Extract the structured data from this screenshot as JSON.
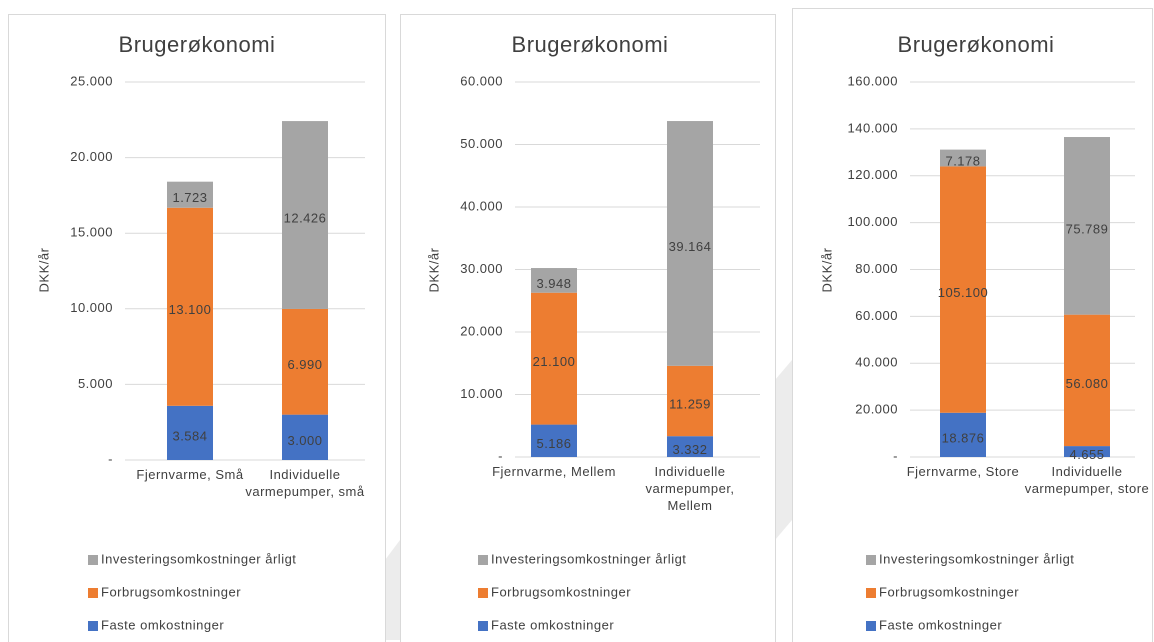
{
  "chart_data": [
    {
      "type": "stacked_bar",
      "title": "Brugerøkonomi",
      "y_label": "DKK/år",
      "categories": [
        "Fjernvarme, Små",
        "Individuelle varmepumper, små"
      ],
      "series": [
        {
          "name": "Faste omkostninger",
          "color": "#4472c4",
          "values": [
            3584,
            3000
          ],
          "value_labels": [
            "3.584",
            "3.000"
          ]
        },
        {
          "name": "Forbrugsomkostninger",
          "color": "#ed7d31",
          "values": [
            13100,
            6990
          ],
          "value_labels": [
            "13.100",
            "6.990"
          ]
        },
        {
          "name": "Investeringsomkostninger årligt",
          "color": "#a5a5a5",
          "values": [
            1723,
            12426
          ],
          "value_labels": [
            "1.723",
            "12.426"
          ]
        }
      ],
      "ylim": [
        0,
        25000
      ],
      "yticks": [
        {
          "value": 0,
          "label": "-"
        },
        {
          "value": 5000,
          "label": "5.000"
        },
        {
          "value": 10000,
          "label": "10.000"
        },
        {
          "value": 15000,
          "label": "15.000"
        },
        {
          "value": 20000,
          "label": "20.000"
        },
        {
          "value": 25000,
          "label": "25.000"
        }
      ],
      "grid": true,
      "legend": "bottom"
    },
    {
      "type": "stacked_bar",
      "title": "Brugerøkonomi",
      "y_label": "DKK/år",
      "categories": [
        "Fjernvarme, Mellem",
        "Individuelle varmepumper, Mellem"
      ],
      "series": [
        {
          "name": "Faste omkostninger",
          "color": "#4472c4",
          "values": [
            5186,
            3332
          ],
          "value_labels": [
            "5.186",
            "3.332"
          ]
        },
        {
          "name": "Forbrugsomkostninger",
          "color": "#ed7d31",
          "values": [
            21100,
            11259
          ],
          "value_labels": [
            "21.100",
            "11.259"
          ]
        },
        {
          "name": "Investeringsomkostninger årligt",
          "color": "#a5a5a5",
          "values": [
            3948,
            39164
          ],
          "value_labels": [
            "3.948",
            "39.164"
          ]
        }
      ],
      "ylim": [
        0,
        60000
      ],
      "yticks": [
        {
          "value": 0,
          "label": "-"
        },
        {
          "value": 10000,
          "label": "10.000"
        },
        {
          "value": 20000,
          "label": "20.000"
        },
        {
          "value": 30000,
          "label": "30.000"
        },
        {
          "value": 40000,
          "label": "40.000"
        },
        {
          "value": 50000,
          "label": "50.000"
        },
        {
          "value": 60000,
          "label": "60.000"
        }
      ],
      "grid": true,
      "legend": "bottom"
    },
    {
      "type": "stacked_bar",
      "title": "Brugerøkonomi",
      "y_label": "DKK/år",
      "categories": [
        "Fjernvarme, Store",
        "Individuelle varmepumper, store"
      ],
      "series": [
        {
          "name": "Faste omkostninger",
          "color": "#4472c4",
          "values": [
            18876,
            4655
          ],
          "value_labels": [
            "18.876",
            "4.655"
          ]
        },
        {
          "name": "Forbrugsomkostninger",
          "color": "#ed7d31",
          "values": [
            105100,
            56080
          ],
          "value_labels": [
            "105.100",
            "56.080"
          ]
        },
        {
          "name": "Investeringsomkostninger årligt",
          "color": "#a5a5a5",
          "values": [
            7178,
            75789
          ],
          "value_labels": [
            "7.178",
            "75.789"
          ]
        }
      ],
      "ylim": [
        0,
        160000
      ],
      "yticks": [
        {
          "value": 0,
          "label": "-"
        },
        {
          "value": 20000,
          "label": "20.000"
        },
        {
          "value": 40000,
          "label": "40.000"
        },
        {
          "value": 60000,
          "label": "60.000"
        },
        {
          "value": 80000,
          "label": "80.000"
        },
        {
          "value": 100000,
          "label": "100.000"
        },
        {
          "value": 120000,
          "label": "120.000"
        },
        {
          "value": 140000,
          "label": "140.000"
        },
        {
          "value": 160000,
          "label": "160.000"
        }
      ],
      "grid": true,
      "legend": "bottom"
    }
  ]
}
